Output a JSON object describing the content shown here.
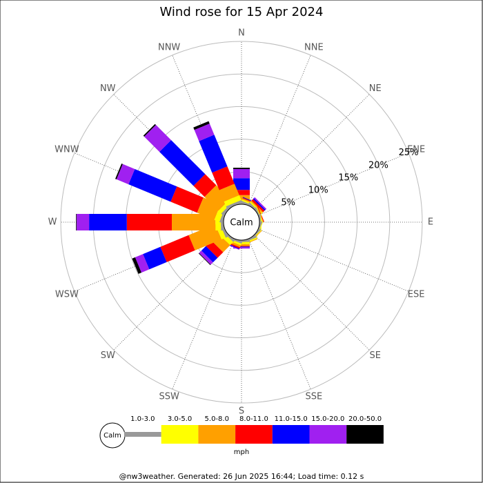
{
  "chart_data": {
    "type": "windrose",
    "title": "Wind rose for 15 Apr 2024",
    "categories": [
      "N",
      "NNE",
      "NE",
      "ENE",
      "E",
      "ESE",
      "SE",
      "SSE",
      "S",
      "SSW",
      "SW",
      "WSW",
      "W",
      "WNW",
      "NW",
      "NNW"
    ],
    "center_label": "Calm",
    "ylim": [
      0,
      25
    ],
    "yticks": [
      {
        "value": 5,
        "label": "5%"
      },
      {
        "value": 10,
        "label": "10%"
      },
      {
        "value": 15,
        "label": "15%"
      },
      {
        "value": 20,
        "label": "20%"
      },
      {
        "value": 25,
        "label": "25%"
      }
    ],
    "series": [
      {
        "name": "1.0-3.0",
        "color": "#999999",
        "values": [
          0.3,
          0.3,
          0.3,
          0.2,
          0.2,
          0.2,
          0.2,
          0.3,
          0.3,
          0.3,
          0.3,
          0.4,
          0.4,
          0.4,
          0.4,
          0.4
        ]
      },
      {
        "name": "3.0-5.0",
        "color": "#ffff00",
        "values": [
          0.3,
          0.2,
          0.2,
          0.1,
          0.1,
          0.1,
          0.1,
          0.2,
          0.3,
          0.3,
          0.7,
          0.7,
          0.85,
          0.85,
          0.6,
          0.8
        ]
      },
      {
        "name": "5.0-8.0",
        "color": "#ffa000",
        "values": [
          0.8,
          0.2,
          0.2,
          0.1,
          0,
          0,
          0.1,
          0.1,
          0.3,
          0.3,
          1.5,
          4.4,
          6.7,
          2.85,
          3.0,
          1.9
        ]
      },
      {
        "name": "8.0-11.0",
        "color": "#ff0000",
        "values": [
          0.8,
          0.1,
          0.3,
          0.1,
          0,
          0,
          0,
          0,
          0.1,
          0.2,
          1.2,
          4.7,
          6.9,
          4.4,
          2.4,
          2.9
        ]
      },
      {
        "name": "11.0-15.0",
        "color": "#0000ff",
        "values": [
          1.8,
          0.1,
          0.2,
          0,
          0,
          0,
          0,
          0,
          0.1,
          0.1,
          1.0,
          2.9,
          5.8,
          7.0,
          7.4,
          5.25
        ]
      },
      {
        "name": "15.0-20.0",
        "color": "#a020f0",
        "values": [
          1.4,
          0,
          0.2,
          0,
          0,
          0,
          0,
          0,
          0.2,
          0.1,
          0.5,
          1.3,
          1.9,
          2.0,
          3.3,
          1.85
        ]
      },
      {
        "name": "20.0-50.0",
        "color": "#000000",
        "values": [
          0.2,
          0,
          0,
          0,
          0,
          0,
          0,
          0,
          0,
          0,
          0.1,
          0.5,
          0.1,
          0.2,
          0.2,
          0.4
        ]
      }
    ],
    "unit_label": "mph",
    "footer": "@nw3weather. Generated: 26 Jun 2025 16:44; Load time: 0.12 s"
  }
}
